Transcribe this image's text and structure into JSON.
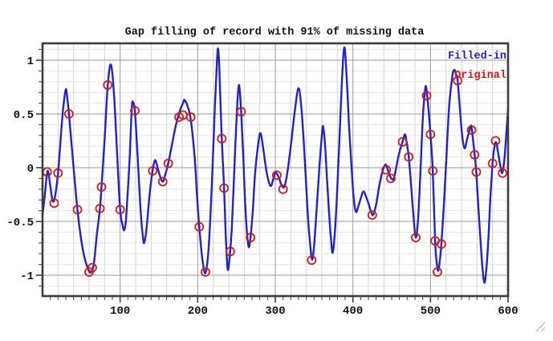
{
  "chart_data": {
    "type": "line",
    "title": "Gap filling of record with 91% of missing data",
    "xlabel": "",
    "ylabel": "",
    "xlim": [
      0,
      600
    ],
    "ylim": [
      -1.194,
      1.157
    ],
    "x_major_ticks": [
      100,
      200,
      300,
      400,
      500,
      600
    ],
    "x_tick_labels": [
      "100",
      "200",
      "300",
      "400",
      "500",
      "600"
    ],
    "y_major_ticks": [
      1,
      0.5,
      0,
      -0.5,
      -1
    ],
    "y_tick_labels": [
      "1",
      "0.5",
      "0",
      "-0.5",
      "-1"
    ],
    "x_minor_tick_step": 10,
    "x_minor_grid_step": 20,
    "y_minor_step": 0.1,
    "grid": "major+minor",
    "legend_position": "top-right-inside",
    "colors": {
      "filled_in_line": "#2222cc",
      "original_marker": "#dd1515",
      "frame": "#3d3d3d",
      "major_grid": "#9a9a9a",
      "minor_grid_v": "#d2d2d2",
      "minor_grid_h": "#e4e4e4",
      "background": "#ffffff"
    },
    "series": [
      {
        "name": "Filled-in",
        "type": "line",
        "color": "#2222cc",
        "points": [
          [
            0,
            -0.44
          ],
          [
            3,
            -0.25
          ],
          [
            6.5,
            -0.03
          ],
          [
            10,
            -0.17
          ],
          [
            13,
            -0.31
          ],
          [
            16,
            -0.27
          ],
          [
            20,
            -0.05
          ],
          [
            24,
            0.33
          ],
          [
            27,
            0.58
          ],
          [
            30,
            0.73
          ],
          [
            32,
            0.64
          ],
          [
            34,
            0.5
          ],
          [
            38,
            0.17
          ],
          [
            41,
            -0.08
          ],
          [
            45,
            -0.39
          ],
          [
            49,
            -0.63
          ],
          [
            53,
            -0.8
          ],
          [
            58,
            -0.93
          ],
          [
            62,
            -0.975
          ],
          [
            66,
            -0.9
          ],
          [
            70,
            -0.62
          ],
          [
            74,
            -0.38
          ],
          [
            76,
            -0.18
          ],
          [
            80,
            0.26
          ],
          [
            84,
            0.76
          ],
          [
            88,
            0.96
          ],
          [
            92,
            0.7
          ],
          [
            96,
            0.15
          ],
          [
            100,
            -0.39
          ],
          [
            103,
            -0.53
          ],
          [
            105.5,
            -0.58
          ],
          [
            108,
            -0.44
          ],
          [
            112,
            0.05
          ],
          [
            115,
            0.55
          ],
          [
            116.5,
            0.61
          ],
          [
            119,
            0.53
          ],
          [
            122,
            0.18
          ],
          [
            126,
            -0.35
          ],
          [
            129,
            -0.62
          ],
          [
            131,
            -0.7
          ],
          [
            134,
            -0.57
          ],
          [
            138,
            -0.25
          ],
          [
            142,
            -0.02
          ],
          [
            145,
            0.07
          ],
          [
            148,
            0.01
          ],
          [
            151,
            -0.07
          ],
          [
            155,
            -0.13
          ],
          [
            158,
            -0.07
          ],
          [
            162,
            0.04
          ],
          [
            167,
            0.22
          ],
          [
            172,
            0.4
          ],
          [
            177,
            0.53
          ],
          [
            181,
            0.6
          ],
          [
            183,
            0.63
          ],
          [
            187,
            0.57
          ],
          [
            191,
            0.45
          ],
          [
            196,
            0.1
          ],
          [
            199,
            -0.25
          ],
          [
            202,
            -0.55
          ],
          [
            206,
            -0.85
          ],
          [
            210,
            -0.98
          ],
          [
            214,
            -0.75
          ],
          [
            218,
            -0.2
          ],
          [
            222,
            0.55
          ],
          [
            225,
            1.02
          ],
          [
            226.5,
            1.1
          ],
          [
            228,
            0.9
          ],
          [
            231,
            0.27
          ],
          [
            234,
            -0.19
          ],
          [
            236,
            -0.6
          ],
          [
            238.5,
            -0.94
          ],
          [
            241,
            -0.84
          ],
          [
            244,
            -0.55
          ],
          [
            247,
            -0.05
          ],
          [
            250,
            0.45
          ],
          [
            253,
            0.77
          ],
          [
            256,
            0.52
          ],
          [
            259,
            0.05
          ],
          [
            262,
            -0.45
          ],
          [
            265.5,
            -0.73
          ],
          [
            268,
            -0.65
          ],
          [
            271,
            -0.4
          ],
          [
            274,
            -0.05
          ],
          [
            278,
            0.22
          ],
          [
            281,
            0.32
          ],
          [
            285,
            0.15
          ],
          [
            289,
            -0.05
          ],
          [
            294,
            -0.17
          ],
          [
            298,
            -0.09
          ],
          [
            301,
            -0.045
          ],
          [
            305,
            -0.1
          ],
          [
            308,
            -0.16
          ],
          [
            311.5,
            -0.18
          ],
          [
            315,
            -0.07
          ],
          [
            320,
            0.2
          ],
          [
            325,
            0.52
          ],
          [
            330,
            0.74
          ],
          [
            334,
            0.52
          ],
          [
            338,
            0.08
          ],
          [
            342,
            -0.45
          ],
          [
            345,
            -0.72
          ],
          [
            347.5,
            -0.855
          ],
          [
            350,
            -0.73
          ],
          [
            353,
            -0.42
          ],
          [
            357,
            0.02
          ],
          [
            360,
            0.3
          ],
          [
            361.5,
            0.385
          ],
          [
            364,
            0.22
          ],
          [
            367,
            -0.15
          ],
          [
            370,
            -0.5
          ],
          [
            372,
            -0.68
          ],
          [
            374,
            -0.79
          ],
          [
            377,
            -0.58
          ],
          [
            380,
            -0.18
          ],
          [
            383,
            0.32
          ],
          [
            386,
            0.82
          ],
          [
            389,
            1.12
          ],
          [
            392,
            0.84
          ],
          [
            395,
            0.4
          ],
          [
            398,
            0.04
          ],
          [
            401,
            -0.28
          ],
          [
            404,
            -0.41
          ],
          [
            407,
            -0.36
          ],
          [
            410,
            -0.29
          ],
          [
            413.5,
            -0.22
          ],
          [
            417,
            -0.27
          ],
          [
            420,
            -0.33
          ],
          [
            423,
            -0.4
          ],
          [
            426,
            -0.44
          ],
          [
            430,
            -0.34
          ],
          [
            434,
            -0.17
          ],
          [
            438,
            -0.04
          ],
          [
            442,
            0.03
          ],
          [
            445,
            -0.02
          ],
          [
            448,
            -0.08
          ],
          [
            452,
            -0.11
          ],
          [
            455,
            -0.03
          ],
          [
            458,
            0.08
          ],
          [
            461,
            0.17
          ],
          [
            464,
            0.24
          ],
          [
            467,
            0.31
          ],
          [
            469,
            0.25
          ],
          [
            472,
            0.1
          ],
          [
            475,
            -0.16
          ],
          [
            478,
            -0.44
          ],
          [
            481,
            -0.65
          ],
          [
            484,
            -0.48
          ],
          [
            487,
            -0.05
          ],
          [
            490,
            0.44
          ],
          [
            493,
            0.72
          ],
          [
            494.5,
            0.745
          ],
          [
            497,
            0.58
          ],
          [
            500,
            0.31
          ],
          [
            503,
            -0.03
          ],
          [
            506,
            -0.68
          ],
          [
            508,
            -0.88
          ],
          [
            510,
            -0.96
          ],
          [
            512,
            -0.87
          ],
          [
            514,
            -0.71
          ],
          [
            517,
            -0.38
          ],
          [
            520,
            0.02
          ],
          [
            524,
            0.56
          ],
          [
            528,
            0.84
          ],
          [
            530.5,
            0.91
          ],
          [
            533,
            0.87
          ],
          [
            535,
            0.81
          ],
          [
            538,
            0.54
          ],
          [
            541,
            0.29
          ],
          [
            544,
            0.18
          ],
          [
            547,
            0.26
          ],
          [
            550,
            0.34
          ],
          [
            552.5,
            0.39
          ],
          [
            555,
            0.25
          ],
          [
            557,
            0.12
          ],
          [
            559,
            -0.04
          ],
          [
            561,
            -0.28
          ],
          [
            564,
            -0.62
          ],
          [
            567,
            -0.93
          ],
          [
            569.5,
            -1.07
          ],
          [
            572,
            -0.95
          ],
          [
            575,
            -0.62
          ],
          [
            577,
            -0.3
          ],
          [
            580,
            0.04
          ],
          [
            582,
            0.17
          ],
          [
            584.5,
            0.24
          ],
          [
            587,
            0.15
          ],
          [
            590,
            0.02
          ],
          [
            592.5,
            -0.05
          ],
          [
            595,
            0.06
          ],
          [
            597,
            0.24
          ],
          [
            599,
            0.44
          ],
          [
            600,
            0.55
          ]
        ]
      },
      {
        "name": "Original",
        "type": "scatter",
        "marker": "open-circle",
        "color": "#dd1515",
        "points": [
          [
            6,
            -0.04
          ],
          [
            15,
            -0.33
          ],
          [
            20,
            -0.05
          ],
          [
            34,
            0.5
          ],
          [
            45,
            -0.39
          ],
          [
            60,
            -0.97
          ],
          [
            64,
            -0.93
          ],
          [
            74,
            -0.38
          ],
          [
            76,
            -0.18
          ],
          [
            84,
            0.77
          ],
          [
            100,
            -0.39
          ],
          [
            119,
            0.53
          ],
          [
            142,
            -0.03
          ],
          [
            155,
            -0.13
          ],
          [
            162,
            0.04
          ],
          [
            176,
            0.47
          ],
          [
            181,
            0.49
          ],
          [
            191,
            0.47
          ],
          [
            202,
            -0.55
          ],
          [
            210,
            -0.97
          ],
          [
            231,
            0.27
          ],
          [
            234,
            -0.19
          ],
          [
            242,
            -0.78
          ],
          [
            256,
            0.52
          ],
          [
            268,
            -0.65
          ],
          [
            302,
            -0.07
          ],
          [
            310,
            -0.2
          ],
          [
            347,
            -0.86
          ],
          [
            425,
            -0.44
          ],
          [
            443,
            -0.02
          ],
          [
            449,
            -0.1
          ],
          [
            464,
            0.24
          ],
          [
            472,
            0.1
          ],
          [
            481,
            -0.65
          ],
          [
            495,
            0.67
          ],
          [
            500,
            0.31
          ],
          [
            503,
            -0.03
          ],
          [
            506,
            -0.68
          ],
          [
            509,
            -0.97
          ],
          [
            514,
            -0.71
          ],
          [
            535,
            0.81
          ],
          [
            553,
            0.35
          ],
          [
            557,
            0.12
          ],
          [
            559,
            -0.04
          ],
          [
            580,
            0.04
          ],
          [
            584,
            0.25
          ],
          [
            593,
            -0.05
          ]
        ]
      }
    ]
  }
}
